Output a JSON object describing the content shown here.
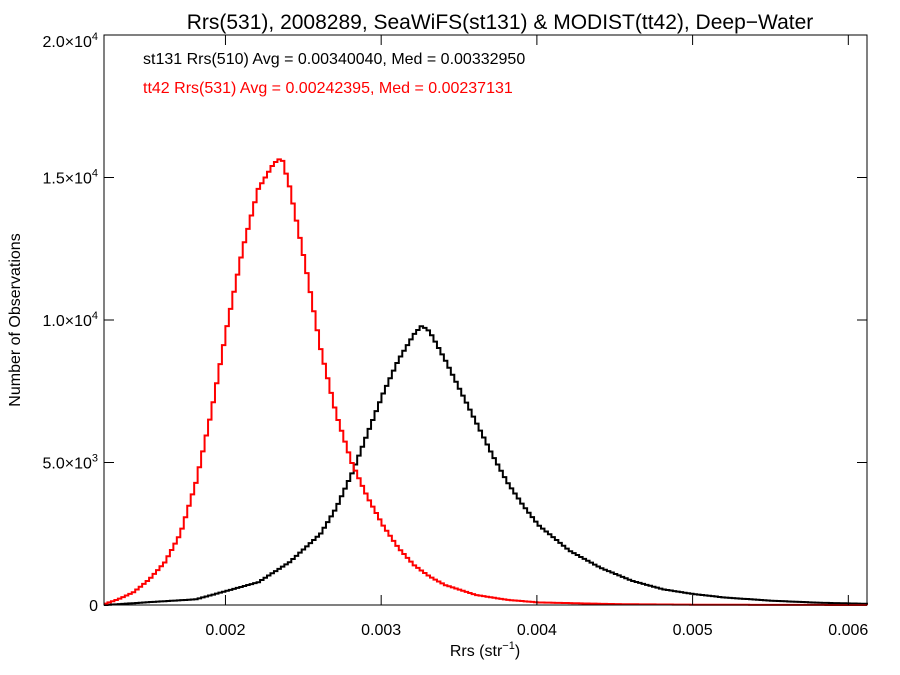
{
  "chart_data": {
    "type": "line",
    "title": "Rrs(531), 2008289, SeaWiFS(st131) & MODIST(tt42), Deep−Water",
    "xlabel": "Rrs (str",
    "xlabel_sup": "−1",
    "xlabel_suffix": ")",
    "ylabel": "Number of Observations",
    "xlim": [
      0.00122,
      0.00612
    ],
    "ylim": [
      0,
      20000
    ],
    "x_ticks": [
      {
        "value": 0.002,
        "label": "0.002"
      },
      {
        "value": 0.003,
        "label": "0.003"
      },
      {
        "value": 0.004,
        "label": "0.004"
      },
      {
        "value": 0.005,
        "label": "0.005"
      },
      {
        "value": 0.006,
        "label": "0.006"
      }
    ],
    "y_ticks": [
      {
        "value": 0,
        "mantissa": "0",
        "exp": ""
      },
      {
        "value": 5000,
        "mantissa": "5.0×10",
        "exp": "3"
      },
      {
        "value": 10000,
        "mantissa": "1.0×10",
        "exp": "4"
      },
      {
        "value": 15000,
        "mantissa": "1.5×10",
        "exp": "4"
      },
      {
        "value": 20000,
        "mantissa": "2.0×10",
        "exp": "4"
      }
    ],
    "grid": false,
    "annotations": [
      {
        "text": "st131 Rrs(510) Avg = 0.00340040, Med = 0.00332950",
        "color": "#000000"
      },
      {
        "text": "tt42 Rrs(531) Avg = 0.00242395, Med = 0.00237131",
        "color": "#ff0000"
      }
    ],
    "series": [
      {
        "color": "#000000",
        "style": "histogram",
        "x": [
          0.00122,
          0.0015,
          0.0018,
          0.002,
          0.0022,
          0.0024,
          0.0026,
          0.0027,
          0.0028,
          0.0029,
          0.003,
          0.0031,
          0.0032,
          0.00325,
          0.0033,
          0.0034,
          0.0035,
          0.0036,
          0.0037,
          0.0038,
          0.0039,
          0.004,
          0.0042,
          0.0044,
          0.0046,
          0.0048,
          0.005,
          0.0052,
          0.0055,
          0.0058,
          0.00612
        ],
        "y": [
          0,
          100,
          200,
          500,
          800,
          1500,
          2500,
          3400,
          4600,
          6000,
          7400,
          8600,
          9500,
          9800,
          9600,
          8600,
          7500,
          6400,
          5300,
          4300,
          3500,
          2800,
          1900,
          1300,
          850,
          550,
          380,
          260,
          150,
          80,
          40
        ]
      },
      {
        "color": "#ff0000",
        "style": "histogram",
        "x": [
          0.00122,
          0.0013,
          0.0014,
          0.0015,
          0.0016,
          0.0017,
          0.0018,
          0.0019,
          0.002,
          0.0021,
          0.0022,
          0.0023,
          0.00235,
          0.0024,
          0.0025,
          0.0026,
          0.0027,
          0.0028,
          0.0029,
          0.003,
          0.0031,
          0.0032,
          0.0033,
          0.0034,
          0.0036,
          0.0038,
          0.004,
          0.0045,
          0.005,
          0.0055,
          0.00612
        ],
        "y": [
          50,
          200,
          450,
          900,
          1500,
          2500,
          4300,
          6800,
          9800,
          12500,
          14600,
          15500,
          15700,
          14700,
          12000,
          9000,
          6700,
          5000,
          3800,
          2800,
          2000,
          1400,
          1000,
          700,
          350,
          180,
          90,
          30,
          10,
          5,
          0
        ]
      }
    ]
  }
}
